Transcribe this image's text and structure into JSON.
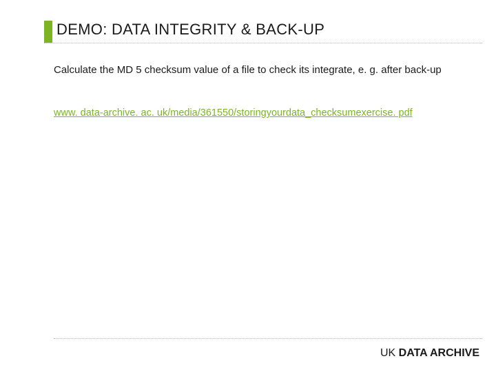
{
  "header": {
    "accent_color": "#7bb521",
    "title": "DEMO: DATA INTEGRITY & BACK-UP"
  },
  "body": {
    "paragraph": "Calculate the MD 5 checksum value of a file to check its integrate, e. g. after back-up"
  },
  "link": {
    "text": "www. data-archive. ac. uk/media/361550/storingyourdata_checksumexercise. pdf",
    "color": "#7bb521"
  },
  "footer": {
    "prefix": "UK ",
    "bold": "DATA ARCHIVE"
  },
  "style": {
    "dotted_color": "#b0b0b0",
    "background": "#ffffff",
    "text_color": "#1a1a1a"
  }
}
